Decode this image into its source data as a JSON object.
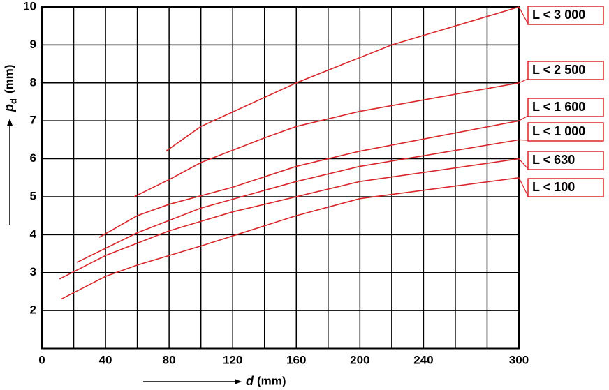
{
  "chart_data": {
    "type": "line",
    "xlabel": "d",
    "xlabel_unit": "(mm)",
    "ylabel": "p",
    "ylabel_sub": "d",
    "ylabel_unit": "(mm)",
    "xlim": [
      0,
      300
    ],
    "ylim": [
      1,
      10
    ],
    "xticks": [
      0,
      40,
      80,
      120,
      160,
      200,
      240,
      300
    ],
    "yticks": [
      2,
      3,
      4,
      5,
      6,
      7,
      8,
      9,
      10
    ],
    "xgrid": [
      0,
      20,
      40,
      60,
      80,
      100,
      120,
      140,
      160,
      180,
      200,
      220,
      240,
      260,
      280,
      300
    ],
    "ygrid": [
      1,
      2,
      3,
      4,
      5,
      6,
      7,
      8,
      9,
      10
    ],
    "grid": true,
    "series": [
      {
        "name": "L < 3 000",
        "color": "#d9262b",
        "x": [
          78,
          100,
          160,
          220,
          300
        ],
        "values": [
          6.2,
          6.85,
          8.0,
          9.0,
          10
        ]
      },
      {
        "name": "L < 2 500",
        "color": "#d9262b",
        "x": [
          58,
          80,
          100,
          140,
          160,
          200,
          260,
          300
        ],
        "values": [
          5.0,
          5.45,
          5.9,
          6.55,
          6.85,
          7.25,
          7.7,
          8.0
        ]
      },
      {
        "name": "L < 1 600",
        "color": "#d9262b",
        "x": [
          36,
          60,
          80,
          120,
          160,
          200,
          250,
          300
        ],
        "values": [
          3.93,
          4.5,
          4.8,
          5.25,
          5.8,
          6.2,
          6.6,
          7.0
        ]
      },
      {
        "name": "L < 1 000",
        "color": "#d9262b",
        "x": [
          22,
          60,
          100,
          160,
          200,
          300
        ],
        "values": [
          3.27,
          4.05,
          4.7,
          5.4,
          5.8,
          6.5
        ]
      },
      {
        "name": "L < 630",
        "color": "#d9262b",
        "x": [
          11,
          40,
          80,
          120,
          160,
          200,
          300
        ],
        "values": [
          2.83,
          3.45,
          4.1,
          4.6,
          5.0,
          5.4,
          6.0
        ]
      },
      {
        "name": "L < 100",
        "color": "#d9262b",
        "x": [
          12,
          40,
          60,
          100,
          160,
          200,
          300
        ],
        "values": [
          2.3,
          2.9,
          3.2,
          3.7,
          4.5,
          4.95,
          5.5
        ]
      }
    ]
  }
}
